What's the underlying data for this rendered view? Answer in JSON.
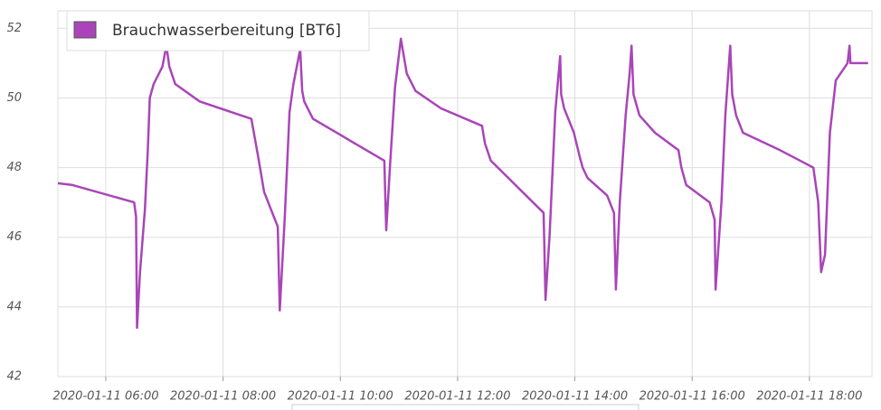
{
  "chart_data": {
    "type": "line",
    "x": [
      "2020-01-11 05:11",
      "2020-01-11 05:26",
      "2020-01-11 06:29",
      "2020-01-11 06:31",
      "2020-01-11 06:32",
      "2020-01-11 06:35",
      "2020-01-11 06:40",
      "2020-01-11 06:43",
      "2020-01-11 06:45",
      "2020-01-11 06:49",
      "2020-01-11 06:58",
      "2020-01-11 07:02",
      "2020-01-11 07:05",
      "2020-01-11 07:11",
      "2020-01-11 07:36",
      "2020-01-11 08:29",
      "2020-01-11 08:36",
      "2020-01-11 08:42",
      "2020-01-11 08:56",
      "2020-01-11 08:58",
      "2020-01-11 09:03",
      "2020-01-11 09:08",
      "2020-01-11 09:12",
      "2020-01-11 09:19",
      "2020-01-11 09:21",
      "2020-01-11 09:23",
      "2020-01-11 09:32",
      "2020-01-11 10:45",
      "2020-01-11 10:47",
      "2020-01-11 10:51",
      "2020-01-11 10:56",
      "2020-01-11 11:02",
      "2020-01-11 11:08",
      "2020-01-11 11:17",
      "2020-01-11 11:43",
      "2020-01-11 12:25",
      "2020-01-11 12:28",
      "2020-01-11 12:34",
      "2020-01-11 13:28",
      "2020-01-11 13:30",
      "2020-01-11 13:34",
      "2020-01-11 13:40",
      "2020-01-11 13:45",
      "2020-01-11 13:46",
      "2020-01-11 13:49",
      "2020-01-11 13:59",
      "2020-01-11 14:05",
      "2020-01-11 14:08",
      "2020-01-11 14:13",
      "2020-01-11 14:33",
      "2020-01-11 14:40",
      "2020-01-11 14:42",
      "2020-01-11 14:46",
      "2020-01-11 14:52",
      "2020-01-11 14:56",
      "2020-01-11 14:58",
      "2020-01-11 15:00",
      "2020-01-11 15:06",
      "2020-01-11 15:22",
      "2020-01-11 15:46",
      "2020-01-11 15:49",
      "2020-01-11 15:54",
      "2020-01-11 16:18",
      "2020-01-11 16:23",
      "2020-01-11 16:24",
      "2020-01-11 16:30",
      "2020-01-11 16:34",
      "2020-01-11 16:39",
      "2020-01-11 16:41",
      "2020-01-11 16:45",
      "2020-01-11 16:52",
      "2020-01-11 17:30",
      "2020-01-11 18:04",
      "2020-01-11 18:09",
      "2020-01-11 18:12",
      "2020-01-11 18:16",
      "2020-01-11 18:21",
      "2020-01-11 18:27",
      "2020-01-11 18:39",
      "2020-01-11 18:41",
      "2020-01-11 18:42",
      "2020-01-11 19:00"
    ],
    "series": [
      {
        "name": "Brauchwasserbereitung [BT6]",
        "color": "#a945b8",
        "values": [
          47.55,
          47.5,
          47.0,
          46.6,
          43.4,
          45.0,
          46.8,
          48.5,
          50.0,
          50.4,
          50.9,
          51.5,
          50.9,
          50.4,
          49.9,
          49.4,
          48.3,
          47.3,
          46.3,
          43.9,
          46.5,
          49.6,
          50.4,
          51.4,
          50.2,
          49.9,
          49.4,
          48.2,
          46.2,
          48.1,
          50.3,
          51.7,
          50.7,
          50.2,
          49.7,
          49.2,
          48.7,
          48.2,
          46.7,
          44.2,
          46.0,
          49.6,
          51.2,
          50.1,
          49.7,
          49.0,
          48.3,
          48.0,
          47.7,
          47.2,
          46.7,
          44.5,
          47.0,
          49.5,
          50.7,
          51.5,
          50.1,
          49.5,
          49.0,
          48.5,
          48.0,
          47.5,
          47.0,
          46.5,
          44.5,
          47.0,
          49.5,
          51.5,
          50.1,
          49.5,
          49.0,
          48.5,
          48.0,
          47.0,
          45.0,
          45.5,
          49.0,
          50.5,
          51.0,
          51.5,
          51.0,
          51.0
        ]
      }
    ],
    "xlim": [
      "2020-01-11 05:11",
      "2020-01-11 19:04"
    ],
    "xticks": [
      "2020-01-11 06:00",
      "2020-01-11 08:00",
      "2020-01-11 10:00",
      "2020-01-11 12:00",
      "2020-01-11 14:00",
      "2020-01-11 16:00",
      "2020-01-11 18:00"
    ],
    "ylim": [
      42,
      52.5
    ],
    "yticks": [
      42,
      44,
      46,
      48,
      50,
      52
    ],
    "grid": true,
    "legend": "top-left"
  }
}
